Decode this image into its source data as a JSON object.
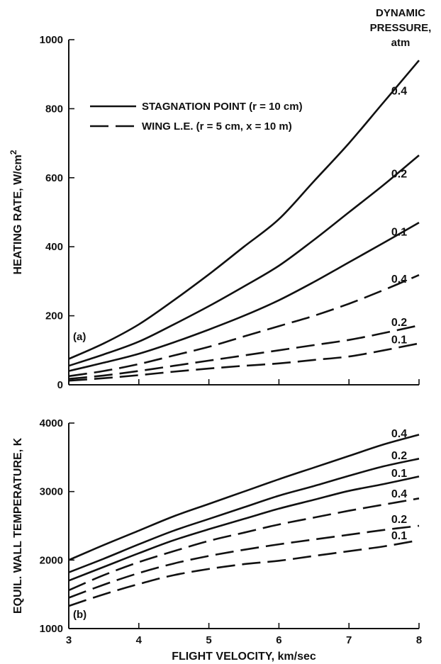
{
  "chart_data": [
    {
      "type": "line",
      "panel_label": "(a)",
      "xlabel": "",
      "ylabel_main": "HEATING RATE, W/cm",
      "ylabel_sup": "2",
      "xlim": [
        3,
        8
      ],
      "ylim": [
        0,
        1000
      ],
      "x_ticks": [
        3,
        4,
        5,
        6,
        7,
        8
      ],
      "y_ticks": [
        0,
        200,
        400,
        600,
        800,
        1000
      ],
      "legend_title": [
        "DYNAMIC",
        "PRESSURE,",
        "atm"
      ],
      "legend": [
        {
          "label": "STAGNATION POINT (r = 10 cm)",
          "style": "solid"
        },
        {
          "label": "WING L.E. (r = 5 cm, x = 10 m)",
          "style": "dashed"
        }
      ],
      "x": [
        3,
        3.5,
        4,
        4.5,
        5,
        5.5,
        6,
        6.5,
        7,
        7.5,
        8
      ],
      "series": [
        {
          "label": "0.4",
          "style": "solid",
          "y": [
            75,
            120,
            175,
            245,
            320,
            400,
            480,
            590,
            700,
            820,
            940
          ]
        },
        {
          "label": "0.2",
          "style": "solid",
          "y": [
            55,
            88,
            125,
            175,
            228,
            285,
            345,
            420,
            500,
            580,
            665
          ]
        },
        {
          "label": "0.1",
          "style": "solid",
          "y": [
            40,
            64,
            90,
            123,
            160,
            200,
            245,
            298,
            355,
            412,
            470
          ]
        },
        {
          "label": "0.4",
          "style": "dashed",
          "y": [
            25,
            40,
            60,
            85,
            110,
            140,
            170,
            200,
            235,
            275,
            318
          ]
        },
        {
          "label": "0.2",
          "style": "dashed",
          "y": [
            17,
            27,
            40,
            55,
            70,
            85,
            100,
            115,
            130,
            150,
            172
          ]
        },
        {
          "label": "0.1",
          "style": "dashed",
          "y": [
            12,
            19,
            28,
            38,
            47,
            55,
            62,
            72,
            82,
            100,
            120
          ]
        }
      ]
    },
    {
      "type": "line",
      "panel_label": "(b)",
      "xlabel": "FLIGHT VELOCITY, km/sec",
      "ylabel_main": "EQUIL. WALL TEMPERATURE, K",
      "ylabel_sup": "",
      "xlim": [
        3,
        8
      ],
      "ylim": [
        1000,
        4000
      ],
      "x_ticks": [
        3,
        4,
        5,
        6,
        7,
        8
      ],
      "y_ticks": [
        1000,
        2000,
        3000,
        4000
      ],
      "x": [
        3,
        3.5,
        4,
        4.5,
        5,
        5.5,
        6,
        6.5,
        7,
        7.5,
        8
      ],
      "series": [
        {
          "label": "0.4",
          "style": "solid",
          "y": [
            2000,
            2220,
            2430,
            2640,
            2820,
            3000,
            3180,
            3350,
            3520,
            3690,
            3830
          ]
        },
        {
          "label": "0.2",
          "style": "solid",
          "y": [
            1820,
            2020,
            2230,
            2430,
            2600,
            2770,
            2940,
            3080,
            3230,
            3370,
            3480
          ]
        },
        {
          "label": "0.1",
          "style": "solid",
          "y": [
            1700,
            1900,
            2100,
            2290,
            2450,
            2600,
            2750,
            2880,
            3010,
            3110,
            3220
          ]
        },
        {
          "label": "0.4",
          "style": "dashed",
          "y": [
            1560,
            1780,
            1970,
            2130,
            2280,
            2400,
            2520,
            2620,
            2720,
            2810,
            2900
          ]
        },
        {
          "label": "0.2",
          "style": "dashed",
          "y": [
            1450,
            1640,
            1810,
            1950,
            2060,
            2150,
            2230,
            2300,
            2370,
            2440,
            2500
          ]
        },
        {
          "label": "0.1",
          "style": "dashed",
          "y": [
            1330,
            1500,
            1650,
            1780,
            1870,
            1940,
            1990,
            2060,
            2130,
            2200,
            2290
          ]
        }
      ]
    }
  ]
}
